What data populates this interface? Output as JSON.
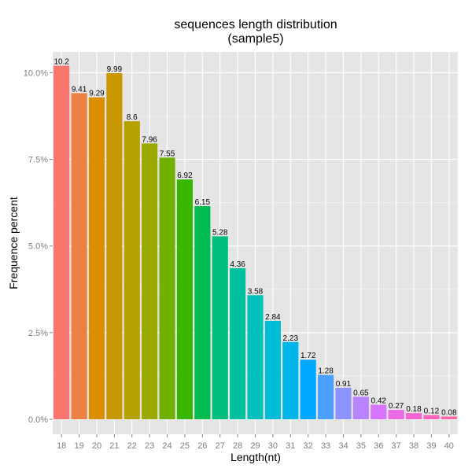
{
  "chart_data": {
    "type": "bar",
    "title": "sequences length distribution",
    "subtitle": "(sample5)",
    "xlabel": "Length(nt)",
    "ylabel": "Frequence percent",
    "categories": [
      "18",
      "19",
      "20",
      "21",
      "22",
      "23",
      "24",
      "25",
      "26",
      "27",
      "28",
      "29",
      "30",
      "31",
      "32",
      "33",
      "34",
      "35",
      "36",
      "37",
      "38",
      "39",
      "40"
    ],
    "values": [
      10.2,
      9.41,
      9.29,
      9.99,
      8.6,
      7.96,
      7.55,
      6.92,
      6.15,
      5.28,
      4.36,
      3.58,
      2.84,
      2.23,
      1.72,
      1.28,
      0.91,
      0.65,
      0.42,
      0.27,
      0.18,
      0.12,
      0.08
    ],
    "data_labels": [
      "10.2",
      "9.41",
      "9.29",
      "9.99",
      "8.6",
      "7.96",
      "7.55",
      "6.92",
      "6.15",
      "5.28",
      "4.36",
      "3.58",
      "2.84",
      "2.23",
      "1.72",
      "1.28",
      "0.91",
      "0.65",
      "0.42",
      "0.27",
      "0.18",
      "0.12",
      "0.08"
    ],
    "ylim": [
      0,
      10.6
    ],
    "yticks": [
      0,
      2.5,
      5.0,
      7.5,
      10.0
    ],
    "ytick_labels": [
      "0.0%",
      "2.5%",
      "5.0%",
      "7.5%",
      "10.0%"
    ],
    "grid": true,
    "panel_background": "#e5e5e5",
    "grid_color": "#ffffff",
    "legend": "none",
    "colors": [
      "#F8766D",
      "#EE8043",
      "#DA8E00",
      "#C99800",
      "#B5A100",
      "#9AA800",
      "#72B000",
      "#39B600",
      "#00BB4E",
      "#00BF7D",
      "#00C19F",
      "#00C0BC",
      "#00BCD6",
      "#00B5EA",
      "#00A9FF",
      "#4B9FFF",
      "#8B93FF",
      "#B983FF",
      "#D774FD",
      "#EA6AE8",
      "#F664D1",
      "#FF61BA",
      "#FF66A8"
    ]
  }
}
